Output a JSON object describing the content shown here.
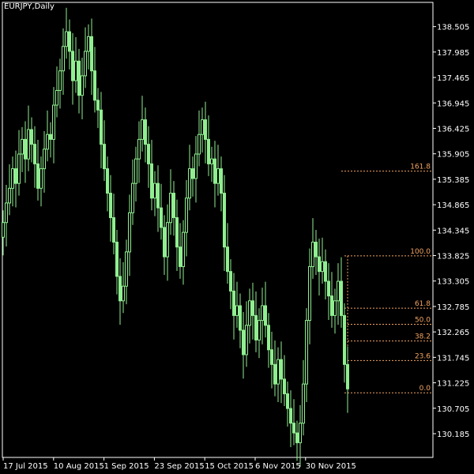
{
  "chart_data": {
    "type": "candlestick",
    "symbol_label": "EURJPY,Daily",
    "y_ticks": [
      "138.505",
      "137.985",
      "137.465",
      "136.945",
      "136.425",
      "135.905",
      "135.385",
      "134.865",
      "134.345",
      "133.825",
      "133.305",
      "132.785",
      "132.265",
      "131.745",
      "131.225",
      "130.705",
      "130.185"
    ],
    "x_ticks": [
      "17 Jul 2015",
      "10 Aug 2015",
      "1 Sep 2015",
      "23 Sep 2015",
      "15 Oct 2015",
      "6 Nov 2015",
      "30 Nov 2015"
    ],
    "ylim": [
      129.7,
      139.0
    ],
    "series_close": [
      134.5,
      134.9,
      135.2,
      135.6,
      135.3,
      135.9,
      136.2,
      135.8,
      136.4,
      136.1,
      135.7,
      135.2,
      135.6,
      136.0,
      136.3,
      136.2,
      136.9,
      137.2,
      137.6,
      138.1,
      138.4,
      138.0,
      137.4,
      137.8,
      137.1,
      137.5,
      138.0,
      138.3,
      137.6,
      137.0,
      136.8,
      136.1,
      135.6,
      135.1,
      134.6,
      134.1,
      133.4,
      132.9,
      133.2,
      133.9,
      134.7,
      135.3,
      135.8,
      136.2,
      136.6,
      136.1,
      135.7,
      135.0,
      135.3,
      134.8,
      134.4,
      133.8,
      134.5,
      135.1,
      134.6,
      134.0,
      133.6,
      134.3,
      135.0,
      135.6,
      135.4,
      135.9,
      136.3,
      136.6,
      136.2,
      135.7,
      135.8,
      135.3,
      135.6,
      135.1,
      134.0,
      133.5,
      133.1,
      132.6,
      132.8,
      132.3,
      131.8,
      132.4,
      132.9,
      132.6,
      132.1,
      132.5,
      132.8,
      132.4,
      131.9,
      131.6,
      131.2,
      131.7,
      131.3,
      131.0,
      130.7,
      130.4,
      130.2,
      130.0,
      130.4,
      131.2,
      132.5,
      133.6,
      134.1,
      133.8,
      133.5,
      133.7,
      133.3,
      133.0,
      132.6,
      132.9,
      133.3,
      132.6,
      131.6,
      131.1
    ],
    "fibonacci": {
      "levels": [
        {
          "label": "161.8",
          "value": 135.55
        },
        {
          "label": "100.0",
          "value": 133.82
        },
        {
          "label": "61.8",
          "value": 132.75
        },
        {
          "label": "50.0",
          "value": 132.42
        },
        {
          "label": "38.2",
          "value": 132.08
        },
        {
          "label": "23.6",
          "value": 131.68
        },
        {
          "label": "0.0",
          "value": 131.02
        }
      ]
    },
    "colors": {
      "background": "#000000",
      "candle": "#90EE90",
      "axis": "#ffffff",
      "fib": "#F4A460"
    }
  }
}
